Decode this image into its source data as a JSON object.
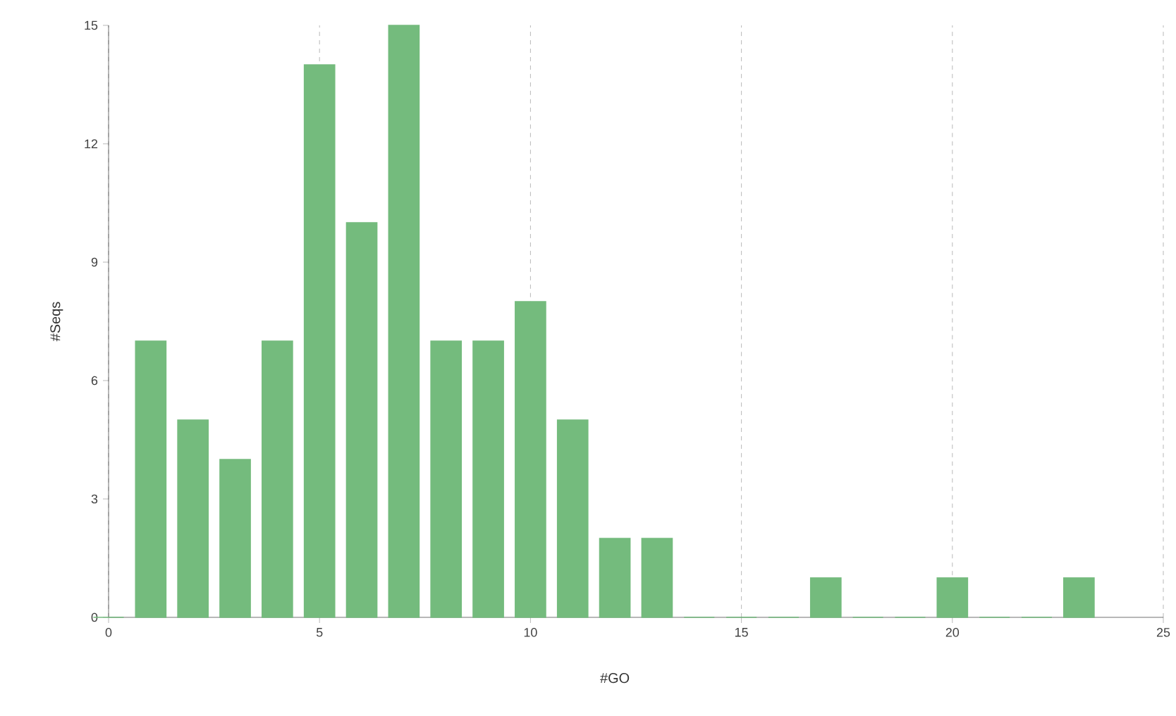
{
  "chart_data": {
    "type": "bar",
    "xlabel": "#GO",
    "ylabel": "#Seqs",
    "x": [
      0,
      1,
      2,
      3,
      4,
      5,
      6,
      7,
      8,
      9,
      10,
      11,
      12,
      13,
      14,
      15,
      16,
      17,
      18,
      19,
      20,
      21,
      22,
      23
    ],
    "values": [
      0,
      7,
      5,
      4,
      7,
      14,
      10,
      15,
      7,
      7,
      8,
      5,
      2,
      2,
      0,
      0,
      0,
      1,
      0,
      0,
      1,
      0,
      0,
      1
    ],
    "color": "#74bb7d",
    "xlim": [
      0,
      25
    ],
    "ylim": [
      0,
      15
    ],
    "xticks": [
      0,
      5,
      10,
      15,
      20,
      25
    ],
    "yticks": [
      0,
      3,
      6,
      9,
      12,
      15
    ],
    "grid": "x"
  }
}
